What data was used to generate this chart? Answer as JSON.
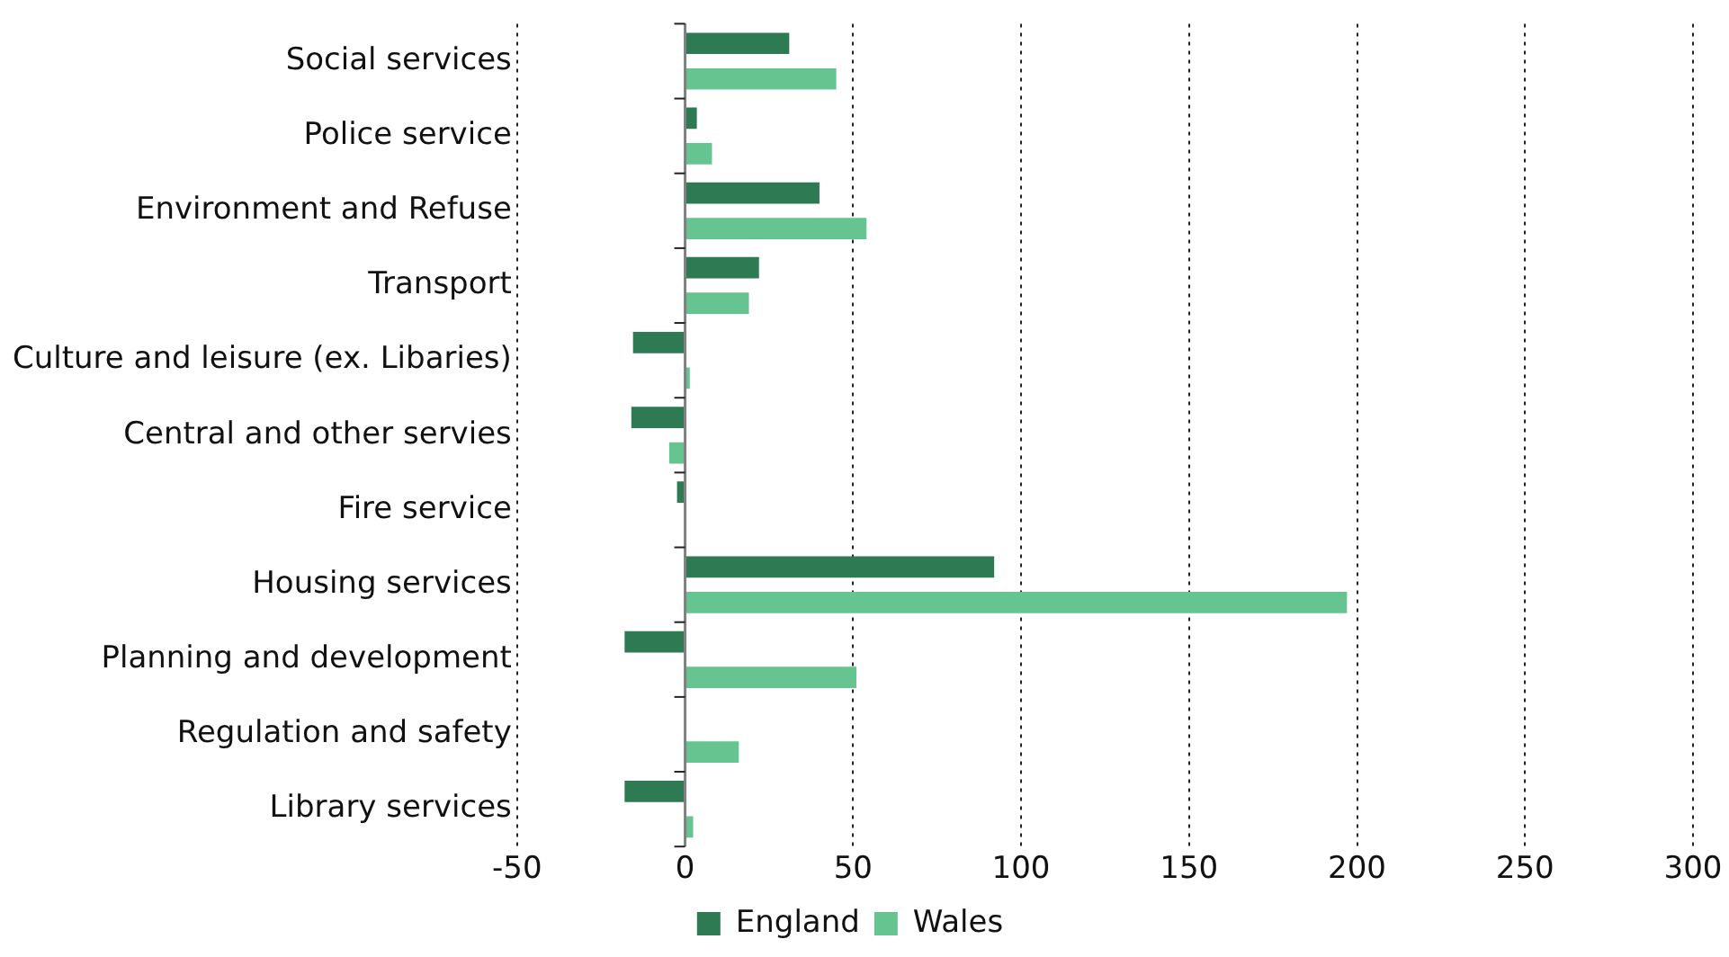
{
  "chart_data": {
    "type": "bar",
    "orientation": "horizontal",
    "categories": [
      "Social services",
      "Police service",
      "Environment and Refuse",
      "Transport",
      "Culture and leisure (ex. Libaries)",
      "Central and other servies",
      "Fire service",
      "Housing services",
      "Planning and development",
      "Regulation and safety",
      "Library services"
    ],
    "series": [
      {
        "name": "England",
        "color": "#2e7a52",
        "values": [
          31,
          3.5,
          40,
          22,
          -15.5,
          -16,
          -2.4,
          92,
          -18,
          null,
          -18
        ]
      },
      {
        "name": "Wales",
        "color": "#66c491",
        "values": [
          45,
          8,
          54,
          19,
          1.4,
          -4.7,
          0.3,
          197,
          51,
          16,
          2.4
        ]
      }
    ],
    "xlim": [
      -50,
      300
    ],
    "xticks": [
      -50,
      0,
      50,
      100,
      150,
      200,
      250,
      300
    ],
    "grid": "x",
    "legend": "bottom"
  }
}
